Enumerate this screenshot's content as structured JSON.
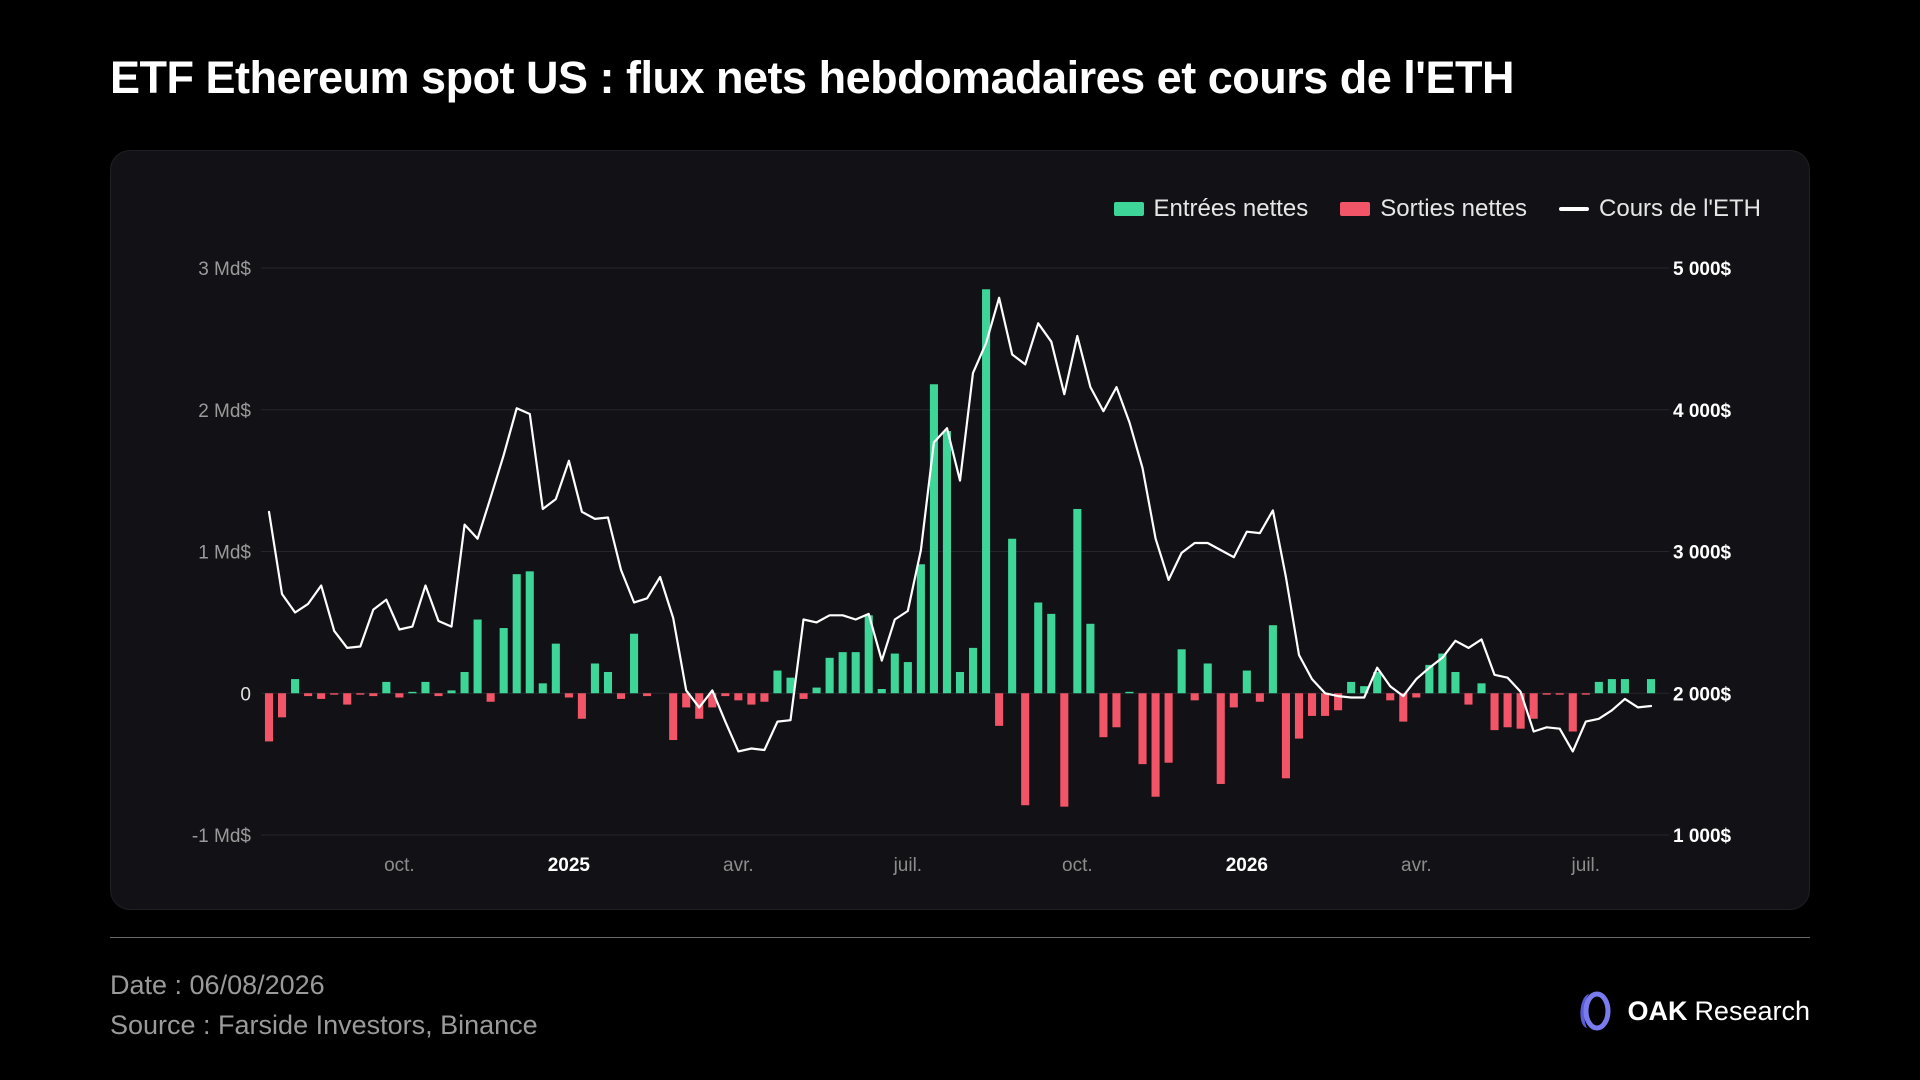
{
  "title": "ETF Ethereum spot US : flux nets hebdomadaires et cours de l'ETH",
  "legend": {
    "inflows": "Entrées nettes",
    "outflows": "Sorties nettes",
    "price": "Cours de l'ETH"
  },
  "colors": {
    "inflow": "#3dd598",
    "outflow": "#f25468",
    "price_line": "#ffffff",
    "background": "#000000",
    "panel": "#121216"
  },
  "footer": {
    "date": "Date : 06/08/2026",
    "source": "Source : Farside Investors, Binance"
  },
  "brand": {
    "strong": "OAK",
    "rest": "Research",
    "icon": "oak-logo-icon"
  },
  "chart_data": {
    "type": "bar",
    "y_left": {
      "ticks": [
        "3 Md$",
        "2 Md$",
        "1 Md$",
        "0",
        "-1 Md$"
      ],
      "tick_values": [
        3,
        2,
        1,
        0,
        -1
      ],
      "range": [
        -1,
        3
      ],
      "unit": "Md$"
    },
    "y_right": {
      "ticks": [
        "5 000$",
        "4 000$",
        "3 000$",
        "2 000$",
        "1 000$"
      ],
      "tick_values": [
        5000,
        4000,
        3000,
        2000,
        1000
      ],
      "range": [
        1000,
        5000
      ],
      "unit": "$"
    },
    "x_ticks": [
      {
        "label": "oct.",
        "bold": false,
        "week": 10
      },
      {
        "label": "2025",
        "bold": true,
        "week": 23
      },
      {
        "label": "avr.",
        "bold": false,
        "week": 36
      },
      {
        "label": "juil.",
        "bold": false,
        "week": 49
      },
      {
        "label": "oct.",
        "bold": false,
        "week": 62
      },
      {
        "label": "2026",
        "bold": true,
        "week": 75
      },
      {
        "label": "avr.",
        "bold": false,
        "week": 88
      },
      {
        "label": "juil.",
        "bold": false,
        "week": 101
      }
    ],
    "grid": true,
    "legend_position": "top-right",
    "series": [
      {
        "name": "Flux nets (Md$)",
        "type": "bar",
        "values": [
          -0.34,
          -0.17,
          0.1,
          -0.02,
          -0.04,
          -0.01,
          -0.08,
          -0.01,
          -0.02,
          0.08,
          -0.03,
          0.01,
          0.08,
          -0.02,
          0.02,
          0.15,
          0.52,
          -0.06,
          0.46,
          0.84,
          0.86,
          0.07,
          0.35,
          -0.03,
          -0.18,
          0.21,
          0.15,
          -0.04,
          0.42,
          -0.02,
          0.0,
          -0.33,
          -0.1,
          -0.18,
          -0.1,
          -0.02,
          -0.05,
          -0.08,
          -0.06,
          0.16,
          0.11,
          -0.04,
          0.04,
          0.25,
          0.29,
          0.29,
          0.55,
          0.03,
          0.28,
          0.22,
          0.91,
          2.18,
          1.85,
          0.15,
          0.32,
          2.85,
          -0.23,
          1.09,
          -0.79,
          0.64,
          0.56,
          -0.8,
          1.3,
          0.49,
          -0.31,
          -0.24,
          0.01,
          -0.5,
          -0.73,
          -0.49,
          0.31,
          -0.05,
          0.21,
          -0.64,
          -0.1,
          0.16,
          -0.06,
          0.48,
          -0.6,
          -0.32,
          -0.16,
          -0.16,
          -0.12,
          0.08,
          0.05,
          0.15,
          -0.05,
          -0.2,
          -0.03,
          0.2,
          0.28,
          0.15,
          -0.08,
          0.07,
          -0.26,
          -0.24,
          -0.25,
          -0.18,
          -0.01,
          -0.01,
          -0.27,
          -0.01,
          0.08,
          0.1,
          0.1,
          0.0,
          0.1
        ]
      },
      {
        "name": "Cours de l'ETH",
        "type": "line",
        "axis": "right",
        "values": [
          3280,
          2700,
          2570,
          2630,
          2760,
          2440,
          2320,
          2330,
          2590,
          2660,
          2450,
          2470,
          2760,
          2510,
          2470,
          3190,
          3090,
          3380,
          3680,
          4010,
          3970,
          3300,
          3370,
          3640,
          3280,
          3230,
          3240,
          2870,
          2640,
          2670,
          2820,
          2530,
          2020,
          1900,
          2020,
          1800,
          1590,
          1610,
          1600,
          1800,
          1810,
          2520,
          2500,
          2550,
          2550,
          2520,
          2560,
          2230,
          2520,
          2580,
          3010,
          3770,
          3870,
          3500,
          4260,
          4470,
          4790,
          4390,
          4320,
          4610,
          4480,
          4110,
          4520,
          4160,
          3990,
          4160,
          3910,
          3590,
          3090,
          2800,
          2990,
          3060,
          3060,
          3010,
          2960,
          3140,
          3130,
          3290,
          2820,
          2270,
          2100,
          2000,
          1980,
          1970,
          1970,
          2180,
          2050,
          1980,
          2100,
          2180,
          2250,
          2370,
          2320,
          2380,
          2130,
          2110,
          2010,
          1730,
          1760,
          1750,
          1590,
          1800,
          1820,
          1880,
          1960,
          1900,
          1910
        ]
      }
    ]
  }
}
